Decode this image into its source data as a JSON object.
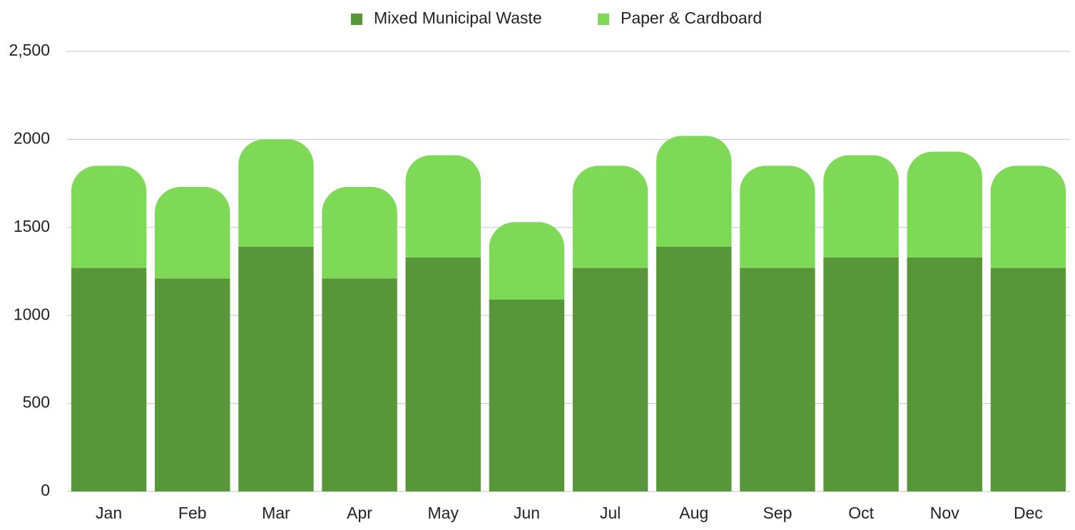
{
  "chart_data": {
    "type": "stacked_bar",
    "categories": [
      "Jan",
      "Feb",
      "Mar",
      "Apr",
      "May",
      "Jun",
      "Jul",
      "Aug",
      "Sep",
      "Oct",
      "Nov",
      "Dec"
    ],
    "series": [
      {
        "name": "Mixed Municipal Waste",
        "color": "#589739",
        "values": [
          1270,
          1210,
          1390,
          1210,
          1330,
          1090,
          1270,
          1390,
          1270,
          1330,
          1330,
          1270
        ]
      },
      {
        "name": "Paper & Cardboard",
        "color": "#7ed957",
        "values": [
          580,
          520,
          610,
          520,
          580,
          440,
          580,
          630,
          580,
          580,
          600,
          580
        ]
      }
    ],
    "ylim": [
      0,
      2500
    ],
    "yticks": [
      0,
      500,
      1000,
      1500,
      2000,
      {
        "value": 2500,
        "label": "2,500"
      }
    ],
    "grid": true,
    "legend": "top"
  }
}
